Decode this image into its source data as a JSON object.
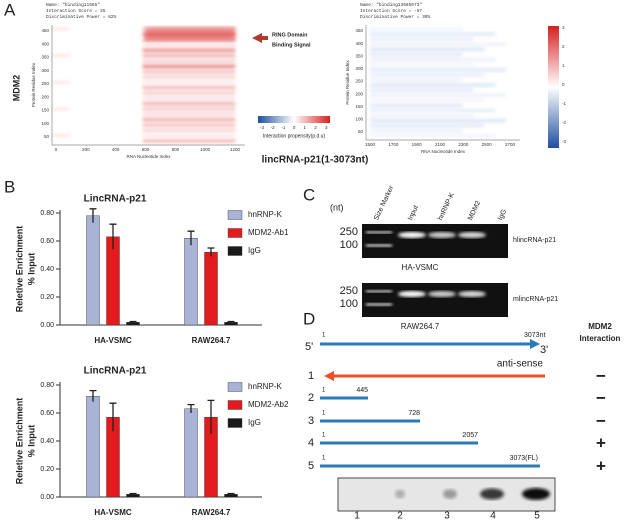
{
  "panel_labels": [
    "A",
    "B",
    "C",
    "D"
  ],
  "panel_a": {
    "left": {
      "header": [
        "Name: \"binding11565\"",
        "Interaction Score = 35",
        "Discriminative Power = 82%"
      ],
      "y_title": "Protein Residue Index",
      "x_title": "RNA Nucleotide Index",
      "yticks": [
        "450",
        "400",
        "350",
        "300",
        "250",
        "200",
        "150",
        "100",
        "50"
      ],
      "xticks": [
        "0",
        "200",
        "400",
        "600",
        "800",
        "1000",
        "1200"
      ]
    },
    "right": {
      "header": [
        "Name: \"binding13665073\"",
        "Interaction Score = -57",
        "Discriminative Power = 30%"
      ],
      "y_title": "Protein Residue Index",
      "x_title": "RNA Nucleotide Index",
      "yticks": [
        "450",
        "400",
        "350",
        "300",
        "250",
        "200",
        "150",
        "100",
        "50"
      ],
      "xticks": [
        "1500",
        "1700",
        "1900",
        "2100",
        "2300",
        "2500",
        "2700"
      ]
    },
    "protein": "MDM2",
    "annotation": [
      "RING Domain",
      "Binding Signal"
    ],
    "colorbar_ticks": [
      "-3",
      "-2",
      "-1",
      "0",
      "1",
      "2",
      "3"
    ],
    "colorbar_title": "Interaction propensity(p.d.u)",
    "title": "lincRNA-p21(1-3073nt)"
  },
  "chart_data": [
    {
      "type": "bar",
      "title": "LincRNA-p21",
      "y_label_lines": [
        "Reletive Enrichment",
        "% Input"
      ],
      "categories": [
        "HA-VSMC",
        "RAW264.7"
      ],
      "series": [
        {
          "name": "hnRNP-K",
          "color": "#a8b3d6",
          "values": [
            0.78,
            0.62
          ],
          "errors": [
            0.05,
            0.05
          ]
        },
        {
          "name": "MDM2-Ab1",
          "color": "#e41b1c",
          "values": [
            0.63,
            0.52
          ],
          "errors": [
            0.09,
            0.03
          ]
        },
        {
          "name": "IgG",
          "color": "#1a1a1a",
          "values": [
            0.02,
            0.02
          ],
          "errors": [
            0.005,
            0.005
          ]
        }
      ],
      "ylim": [
        0,
        0.8
      ],
      "yticks": [
        {
          "value": 0,
          "label": "0.00"
        },
        {
          "value": 0.2,
          "label": "0.20"
        },
        {
          "value": 0.4,
          "label": "0.40"
        },
        {
          "value": 0.6,
          "label": "0.60"
        },
        {
          "value": 0.8,
          "label": "0.80"
        }
      ]
    },
    {
      "type": "bar",
      "title": "LincRNA-p21",
      "y_label_lines": [
        "Reletive Enrichment",
        "% Input"
      ],
      "categories": [
        "HA-VSMC",
        "RAW264.7"
      ],
      "series": [
        {
          "name": "hnRNP-K",
          "color": "#a8b3d6",
          "values": [
            0.72,
            0.63
          ],
          "errors": [
            0.04,
            0.03
          ]
        },
        {
          "name": "MDM2-Ab2",
          "color": "#e41b1c",
          "values": [
            0.57,
            0.57
          ],
          "errors": [
            0.1,
            0.12
          ]
        },
        {
          "name": "IgG",
          "color": "#1a1a1a",
          "values": [
            0.02,
            0.02
          ],
          "errors": [
            0.005,
            0.005
          ]
        }
      ],
      "ylim": [
        0,
        0.8
      ],
      "yticks": [
        {
          "value": 0,
          "label": "0.00"
        },
        {
          "value": 0.2,
          "label": "0.20"
        },
        {
          "value": 0.4,
          "label": "0.40"
        },
        {
          "value": 0.6,
          "label": "0.60"
        },
        {
          "value": 0.8,
          "label": "0.80"
        }
      ]
    }
  ],
  "panel_c": {
    "unit": "(nt)",
    "lanes": [
      "Size Marker",
      "Input",
      "hnRNP-K",
      "MDM2",
      "IgG"
    ],
    "markers": [
      "250",
      "100"
    ],
    "gels": [
      {
        "target": "hlincRNA-p21",
        "cell": "HA-VSMC"
      },
      {
        "target": "mlincRNA-p21",
        "cell": "RAW264.7"
      }
    ]
  },
  "panel_d": {
    "header": [
      "MDM2",
      "Interaction"
    ],
    "full": {
      "start": "1",
      "end": "3073nt",
      "five": "5'",
      "three": "3'"
    },
    "antisense": "anti-sense",
    "constructs": [
      {
        "id": "1",
        "start": null,
        "end": null,
        "result": "−"
      },
      {
        "id": "2",
        "start": "1",
        "end": "445",
        "result": "−"
      },
      {
        "id": "3",
        "start": "1",
        "end": "728",
        "result": "−"
      },
      {
        "id": "4",
        "start": "1",
        "end": "2057",
        "result": "+"
      },
      {
        "id": "5",
        "start": "1",
        "end": "3073(FL)",
        "result": "+"
      }
    ],
    "blot_lanes": [
      "1",
      "2",
      "3",
      "4",
      "5"
    ]
  }
}
